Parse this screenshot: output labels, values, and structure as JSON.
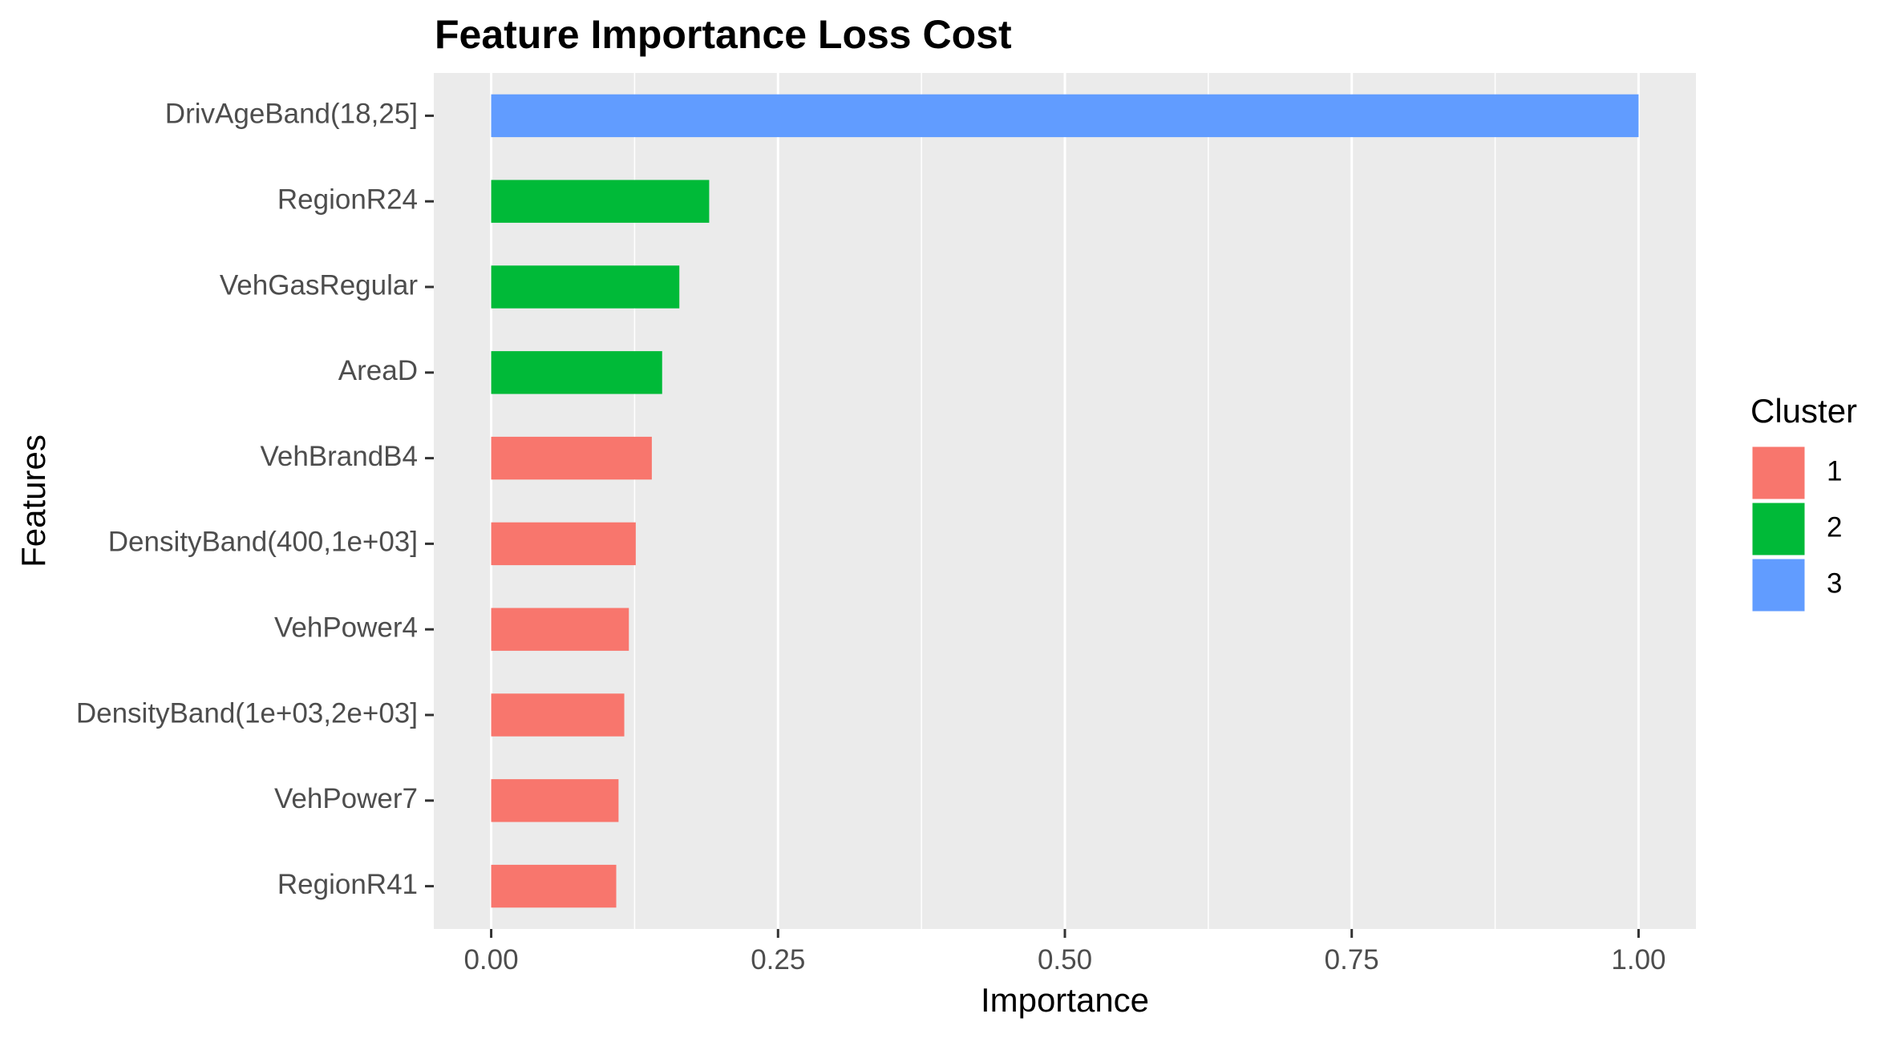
{
  "chart_data": {
    "type": "bar",
    "orientation": "horizontal",
    "title": "Feature Importance Loss Cost",
    "xlabel": "Importance",
    "ylabel": "Features",
    "xlim": [
      -0.05,
      1.05
    ],
    "xticks": [
      0.0,
      0.25,
      0.5,
      0.75,
      1.0
    ],
    "xtick_labels": [
      "0.00",
      "0.25",
      "0.50",
      "0.75",
      "1.00"
    ],
    "grid": true,
    "legend_position": "right",
    "legend": {
      "title": "Cluster",
      "entries": [
        {
          "label": "1",
          "color": "#F8766D"
        },
        {
          "label": "2",
          "color": "#00BA38"
        },
        {
          "label": "3",
          "color": "#619CFF"
        }
      ]
    },
    "colors": {
      "panel_background": "#EBEBEB",
      "grid": "#FFFFFF",
      "text": "#4D4D4D",
      "title": "#000000"
    },
    "bars": [
      {
        "category": "DrivAgeBand(18,25]",
        "value": 1.0,
        "cluster": "3"
      },
      {
        "category": "RegionR24",
        "value": 0.19,
        "cluster": "2"
      },
      {
        "category": "VehGasRegular",
        "value": 0.164,
        "cluster": "2"
      },
      {
        "category": "AreaD",
        "value": 0.149,
        "cluster": "2"
      },
      {
        "category": "VehBrandB4",
        "value": 0.14,
        "cluster": "1"
      },
      {
        "category": "DensityBand(400,1e+03]",
        "value": 0.126,
        "cluster": "1"
      },
      {
        "category": "VehPower4",
        "value": 0.12,
        "cluster": "1"
      },
      {
        "category": "DensityBand(1e+03,2e+03]",
        "value": 0.116,
        "cluster": "1"
      },
      {
        "category": "VehPower7",
        "value": 0.111,
        "cluster": "1"
      },
      {
        "category": "RegionR41",
        "value": 0.109,
        "cluster": "1"
      }
    ]
  }
}
